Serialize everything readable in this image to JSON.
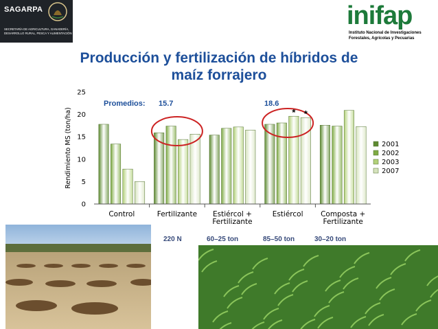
{
  "header": {
    "sagarpa_name": "SAGARPA",
    "sagarpa_subtitle": "SECRETARÍA DE AGRICULTURA, GANADERÍA, DESARROLLO RURAL, PESCA Y ALIMENTACIÓN",
    "inifap_name": "inifap",
    "inifap_subtitle_1": "Instituto Nacional de Investigaciones",
    "inifap_subtitle_2": "Forestales, Agrícolas y Pecuarias"
  },
  "slide_title_line1": "Producción y fertilización de híbridos de",
  "slide_title_line2": "maíz forrajero",
  "chart_data": {
    "type": "bar",
    "title": "",
    "ylabel": "Rendimiento MS (ton/ha)",
    "xlabel": "",
    "ylim": [
      0,
      25
    ],
    "yticks": [
      0,
      5,
      10,
      15,
      20,
      25
    ],
    "grid": false,
    "legend_position": "right",
    "categories": [
      "Control",
      "Fertilizante",
      "Estiércol + Fertilizante",
      "Estiércol",
      "Composta + Fertilizante"
    ],
    "category_labels": [
      [
        "Control"
      ],
      [
        "Fertilizante"
      ],
      [
        "Estiércol +",
        "Fertilizante"
      ],
      [
        "Estiércol"
      ],
      [
        "Composta +",
        "Fertilizante"
      ]
    ],
    "series": [
      {
        "name": "2001",
        "values": [
          17.8,
          15.9,
          15.4,
          17.8,
          17.6
        ],
        "color": "#5e8b32"
      },
      {
        "name": "2002",
        "values": [
          13.4,
          17.4,
          16.9,
          18.1,
          17.4
        ],
        "color": "#7fab44"
      },
      {
        "name": "2003",
        "values": [
          7.8,
          14.4,
          17.2,
          19.6,
          20.9
        ],
        "color": "#b3d17a"
      },
      {
        "name": "2007",
        "values": [
          5.0,
          15.6,
          16.5,
          19.3,
          17.3
        ],
        "color": "#d6e3bd"
      }
    ],
    "annotations": {
      "promedios_label": "Promedios:",
      "promedio_1": "15.7",
      "promedio_2": "18.6",
      "asterisk": "*",
      "doses": [
        "220 N",
        "60–25 ton",
        "85–50 ton",
        "30–20 ton"
      ]
    }
  },
  "colors": {
    "title": "#1d4f9a",
    "circle": "#cc2222",
    "promedio_text": "#1d4f9a",
    "dose_text": "#374a7a"
  }
}
